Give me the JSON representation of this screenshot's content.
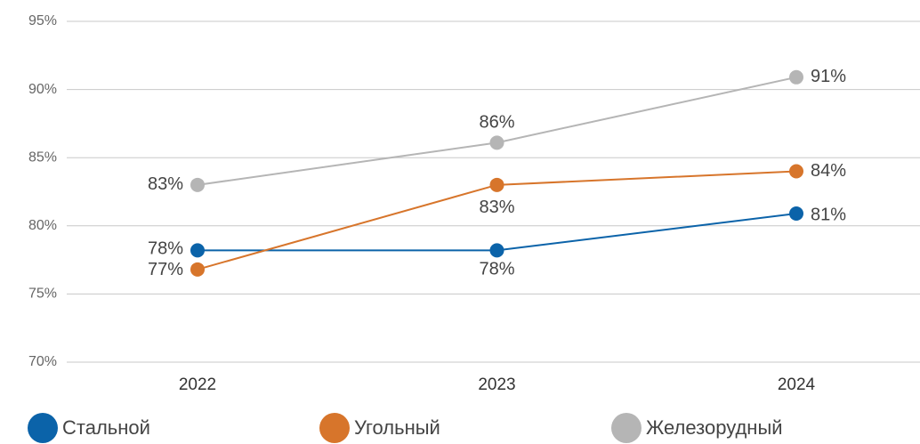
{
  "chart_data": {
    "type": "line",
    "categories": [
      "2022",
      "2023",
      "2024"
    ],
    "series": [
      {
        "name": "Стальной",
        "color": "#0b63a9",
        "values": [
          78.2,
          78.2,
          80.9
        ],
        "value_labels": [
          "78%",
          "78%",
          "81%"
        ]
      },
      {
        "name": "Угольный",
        "color": "#d7752b",
        "values": [
          76.8,
          83,
          84
        ],
        "value_labels": [
          "77%",
          "83%",
          "84%"
        ]
      },
      {
        "name": "Железорудный",
        "color": "#b5b5b5",
        "values": [
          83,
          86.1,
          90.9
        ],
        "value_labels": [
          "83%",
          "86%",
          "91%"
        ]
      }
    ],
    "ylim": [
      70,
      95
    ],
    "yticks": [
      {
        "value": 70,
        "label": "70%"
      },
      {
        "value": 75,
        "label": "75%"
      },
      {
        "value": 80,
        "label": "80%"
      },
      {
        "value": 85,
        "label": "85%"
      },
      {
        "value": 90,
        "label": "90%"
      },
      {
        "value": 95,
        "label": "95%"
      }
    ],
    "grid": true,
    "legend": "bottom"
  }
}
